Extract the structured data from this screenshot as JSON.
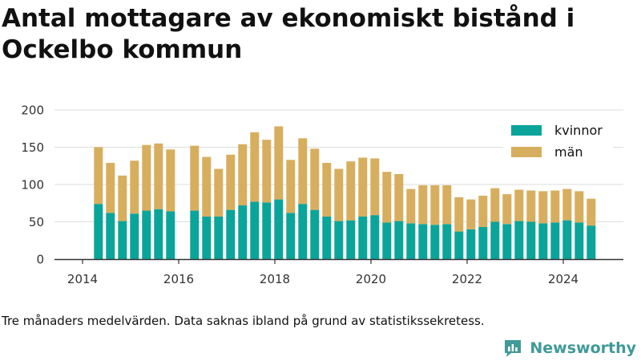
{
  "title": "Antal mottagare av ekonomiskt bistånd i Ockelbo kommun",
  "note": "Tre månaders medelvärden. Data saknas ibland på grund av statistikssekretess.",
  "brand": {
    "name": "Newsworthy"
  },
  "chart_data": {
    "type": "bar",
    "stacked": true,
    "title": "Antal mottagare av ekonomiskt bistånd i Ockelbo kommun",
    "xlabel": "",
    "ylabel": "",
    "ylim": [
      0,
      200
    ],
    "xlim": [
      2013.55,
      2025.2
    ],
    "yticks": [
      0,
      50,
      100,
      150,
      200
    ],
    "xticks": [
      2014,
      2016,
      2018,
      2020,
      2022,
      2024
    ],
    "grid": "y",
    "legend_position": "top-right",
    "x": [
      2014.33,
      2014.58,
      2014.83,
      2015.08,
      2015.33,
      2015.58,
      2015.83,
      2016.33,
      2016.58,
      2016.83,
      2017.08,
      2017.33,
      2017.58,
      2017.83,
      2018.08,
      2018.33,
      2018.58,
      2018.83,
      2019.08,
      2019.33,
      2019.58,
      2019.83,
      2020.08,
      2020.33,
      2020.58,
      2020.83,
      2021.08,
      2021.33,
      2021.58,
      2021.83,
      2022.08,
      2022.33,
      2022.58,
      2022.83,
      2023.08,
      2023.33,
      2023.58,
      2023.83,
      2024.08,
      2024.33,
      2024.58
    ],
    "series": [
      {
        "name": "kvinnor",
        "color": "#0aa49a",
        "values": [
          74,
          62,
          51,
          61,
          65,
          67,
          64,
          65,
          57,
          57,
          66,
          72,
          77,
          76,
          80,
          62,
          74,
          66,
          57,
          51,
          52,
          57,
          59,
          49,
          51,
          48,
          47,
          46,
          47,
          37,
          40,
          43,
          50,
          47,
          51,
          50,
          48,
          49,
          52,
          49,
          45
        ]
      },
      {
        "name": "män",
        "color": "#d7ae5e",
        "values": [
          76,
          67,
          61,
          71,
          88,
          88,
          83,
          87,
          80,
          64,
          74,
          82,
          93,
          84,
          98,
          71,
          88,
          82,
          72,
          70,
          79,
          79,
          76,
          68,
          63,
          46,
          52,
          53,
          52,
          46,
          40,
          42,
          45,
          40,
          42,
          42,
          43,
          43,
          42,
          42,
          36
        ]
      }
    ]
  }
}
